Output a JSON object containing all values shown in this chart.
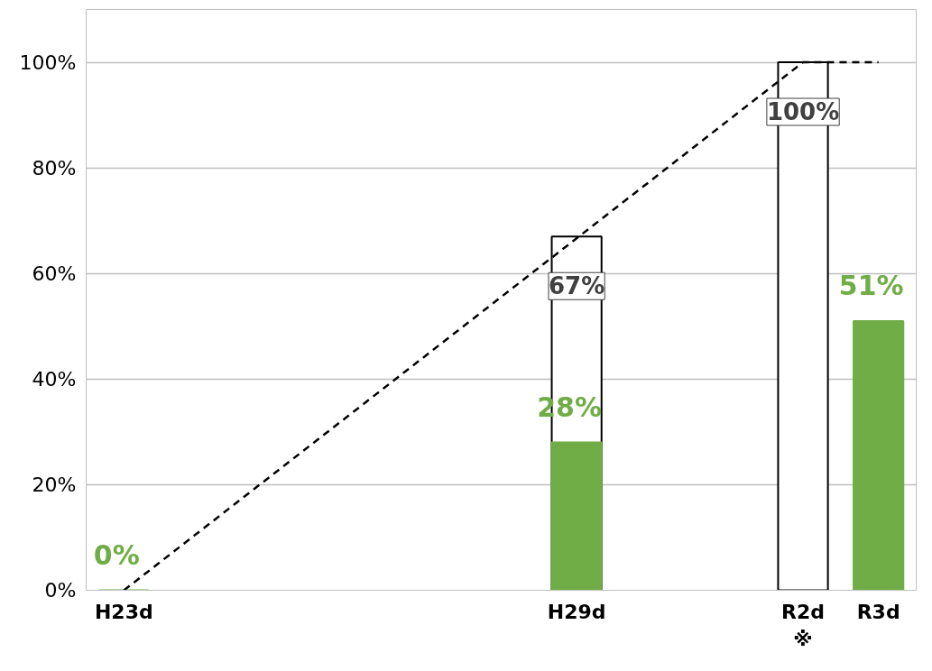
{
  "chart_data": {
    "type": "bar",
    "categories": [
      "H23d",
      null,
      null,
      null,
      null,
      null,
      "H29d",
      null,
      null,
      "R2d\n※",
      "R3d"
    ],
    "ylim": [
      0,
      110
    ],
    "yticks": [
      {
        "value": 0,
        "label": "0%"
      },
      {
        "value": 20,
        "label": "20%"
      },
      {
        "value": 40,
        "label": "40%"
      },
      {
        "value": 60,
        "label": "60%"
      },
      {
        "value": 80,
        "label": "80%"
      },
      {
        "value": 100,
        "label": "100%"
      }
    ],
    "grid": "y",
    "series": [
      {
        "values": [
          null,
          null,
          null,
          null,
          null,
          null,
          67,
          null,
          null,
          100,
          null
        ],
        "color": "#ffffff",
        "value_labels": [
          null,
          null,
          null,
          null,
          null,
          null,
          "67%",
          null,
          null,
          "100%",
          null
        ]
      },
      {
        "values": [
          0,
          null,
          null,
          null,
          null,
          null,
          28,
          null,
          null,
          null,
          51
        ],
        "color": "#70ad47",
        "value_labels": [
          "0%",
          null,
          null,
          null,
          null,
          null,
          "28%",
          null,
          null,
          null,
          "51%"
        ]
      },
      {
        "type": "line",
        "line_style": "dashed",
        "values": [
          0,
          null,
          null,
          null,
          null,
          null,
          null,
          null,
          null,
          100,
          100
        ],
        "color": "#000000"
      }
    ]
  }
}
